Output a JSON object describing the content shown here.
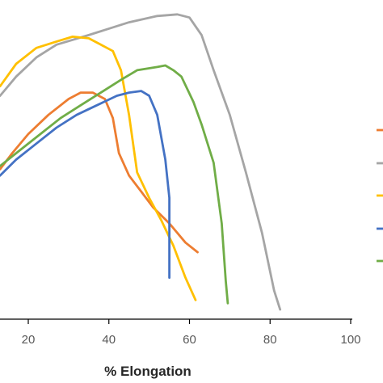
{
  "chart_data": {
    "type": "line",
    "xlabel": "% Elongation",
    "ylabel": "",
    "xlim": [
      20,
      100
    ],
    "xticks": [
      20,
      40,
      60,
      80,
      100
    ],
    "grid": false,
    "legend_position": "right",
    "series": [
      {
        "color": "#ED7D31",
        "points": [
          [
            13,
            0.47
          ],
          [
            16,
            0.52
          ],
          [
            20,
            0.58
          ],
          [
            25,
            0.64
          ],
          [
            30,
            0.69
          ],
          [
            33,
            0.71
          ],
          [
            36,
            0.71
          ],
          [
            39,
            0.69
          ],
          [
            41,
            0.63
          ],
          [
            42.5,
            0.52
          ],
          [
            45,
            0.45
          ],
          [
            48,
            0.4
          ],
          [
            51,
            0.35
          ],
          [
            55,
            0.3
          ],
          [
            59,
            0.24
          ],
          [
            62,
            0.21
          ]
        ]
      },
      {
        "color": "#A5A5A5",
        "points": [
          [
            13,
            0.7
          ],
          [
            17,
            0.76
          ],
          [
            22,
            0.82
          ],
          [
            27,
            0.86
          ],
          [
            35,
            0.89
          ],
          [
            45,
            0.93
          ],
          [
            52,
            0.95
          ],
          [
            57,
            0.955
          ],
          [
            60,
            0.945
          ],
          [
            63,
            0.89
          ],
          [
            66,
            0.78
          ],
          [
            70,
            0.64
          ],
          [
            74,
            0.46
          ],
          [
            78,
            0.27
          ],
          [
            81,
            0.09
          ],
          [
            82.5,
            0.03
          ]
        ]
      },
      {
        "color": "#FFC000",
        "points": [
          [
            13,
            0.73
          ],
          [
            17,
            0.8
          ],
          [
            22,
            0.85
          ],
          [
            27,
            0.87
          ],
          [
            31,
            0.885
          ],
          [
            35,
            0.88
          ],
          [
            38,
            0.86
          ],
          [
            41,
            0.84
          ],
          [
            43,
            0.78
          ],
          [
            45,
            0.64
          ],
          [
            47,
            0.46
          ],
          [
            50,
            0.38
          ],
          [
            53,
            0.31
          ],
          [
            56,
            0.23
          ],
          [
            59,
            0.13
          ],
          [
            61.5,
            0.06
          ]
        ]
      },
      {
        "color": "#4472C4",
        "points": [
          [
            13,
            0.45
          ],
          [
            17,
            0.5
          ],
          [
            22,
            0.55
          ],
          [
            27,
            0.6
          ],
          [
            32,
            0.64
          ],
          [
            37,
            0.67
          ],
          [
            42,
            0.7
          ],
          [
            45,
            0.71
          ],
          [
            48,
            0.715
          ],
          [
            50,
            0.7
          ],
          [
            52,
            0.64
          ],
          [
            54,
            0.5
          ],
          [
            55,
            0.38
          ],
          [
            55,
            0.13
          ]
        ]
      },
      {
        "color": "#70AD47",
        "points": [
          [
            13,
            0.48
          ],
          [
            18,
            0.53
          ],
          [
            23,
            0.58
          ],
          [
            28,
            0.63
          ],
          [
            33,
            0.67
          ],
          [
            38,
            0.71
          ],
          [
            43,
            0.75
          ],
          [
            47,
            0.78
          ],
          [
            52,
            0.79
          ],
          [
            54,
            0.795
          ],
          [
            56,
            0.78
          ],
          [
            58,
            0.76
          ],
          [
            61,
            0.68
          ],
          [
            63,
            0.61
          ],
          [
            66,
            0.49
          ],
          [
            68,
            0.3
          ],
          [
            69,
            0.12
          ],
          [
            69.5,
            0.05
          ]
        ]
      }
    ]
  }
}
